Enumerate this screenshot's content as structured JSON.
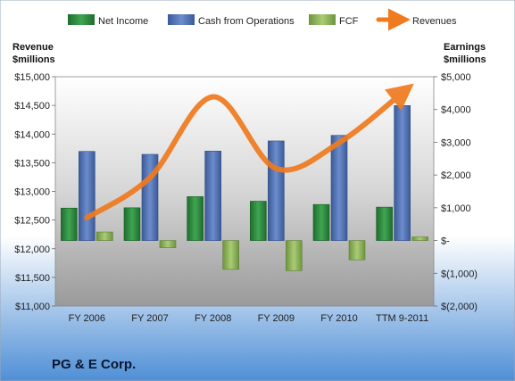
{
  "chart_data": {
    "type": "bar",
    "title": "PG & E Corp.",
    "categories": [
      "FY 2006",
      "FY 2007",
      "FY 2008",
      "FY 2009",
      "FY 2010",
      "TTM 9-2011"
    ],
    "left_axis": {
      "label_line1": "Revenue",
      "label_line2": "$millions",
      "ylim": [
        11000,
        15000
      ],
      "ticks": [
        11000,
        11500,
        12000,
        12500,
        13000,
        13500,
        14000,
        14500,
        15000
      ],
      "tick_labels": [
        "$11,000",
        "$11,500",
        "$12,000",
        "$12,500",
        "$13,000",
        "$13,500",
        "$14,000",
        "$14,500",
        "$15,000"
      ]
    },
    "right_axis": {
      "label_line1": "Earnings",
      "label_line2": "$millions",
      "ylim": [
        -2000,
        5000
      ],
      "ticks": [
        -2000,
        -1000,
        0,
        1000,
        2000,
        3000,
        4000,
        5000
      ],
      "tick_labels": [
        "$(2,000)",
        "$(1,000)",
        "$-",
        "$1,000",
        "$2,000",
        "$3,000",
        "$4,000",
        "$5,000"
      ]
    },
    "series": [
      {
        "name": "Net Income",
        "type": "bar",
        "axis": "right",
        "color": "#2e8b3e",
        "values": [
          990,
          1000,
          1340,
          1200,
          1100,
          1020
        ]
      },
      {
        "name": "Cash from Operations",
        "type": "bar",
        "axis": "right",
        "color": "#4f6fb0",
        "values": [
          2720,
          2630,
          2730,
          3040,
          3210,
          4120
        ]
      },
      {
        "name": "FCF",
        "type": "bar",
        "axis": "right",
        "color": "#8fb45a",
        "values": [
          260,
          -220,
          -880,
          -920,
          -590,
          110
        ]
      },
      {
        "name": "Revenues",
        "type": "line",
        "axis": "left",
        "color": "#f07a1e",
        "values": [
          12540,
          13240,
          14650,
          13400,
          13850,
          14720
        ]
      }
    ],
    "legend": {
      "placement": "top"
    },
    "grid": false
  }
}
